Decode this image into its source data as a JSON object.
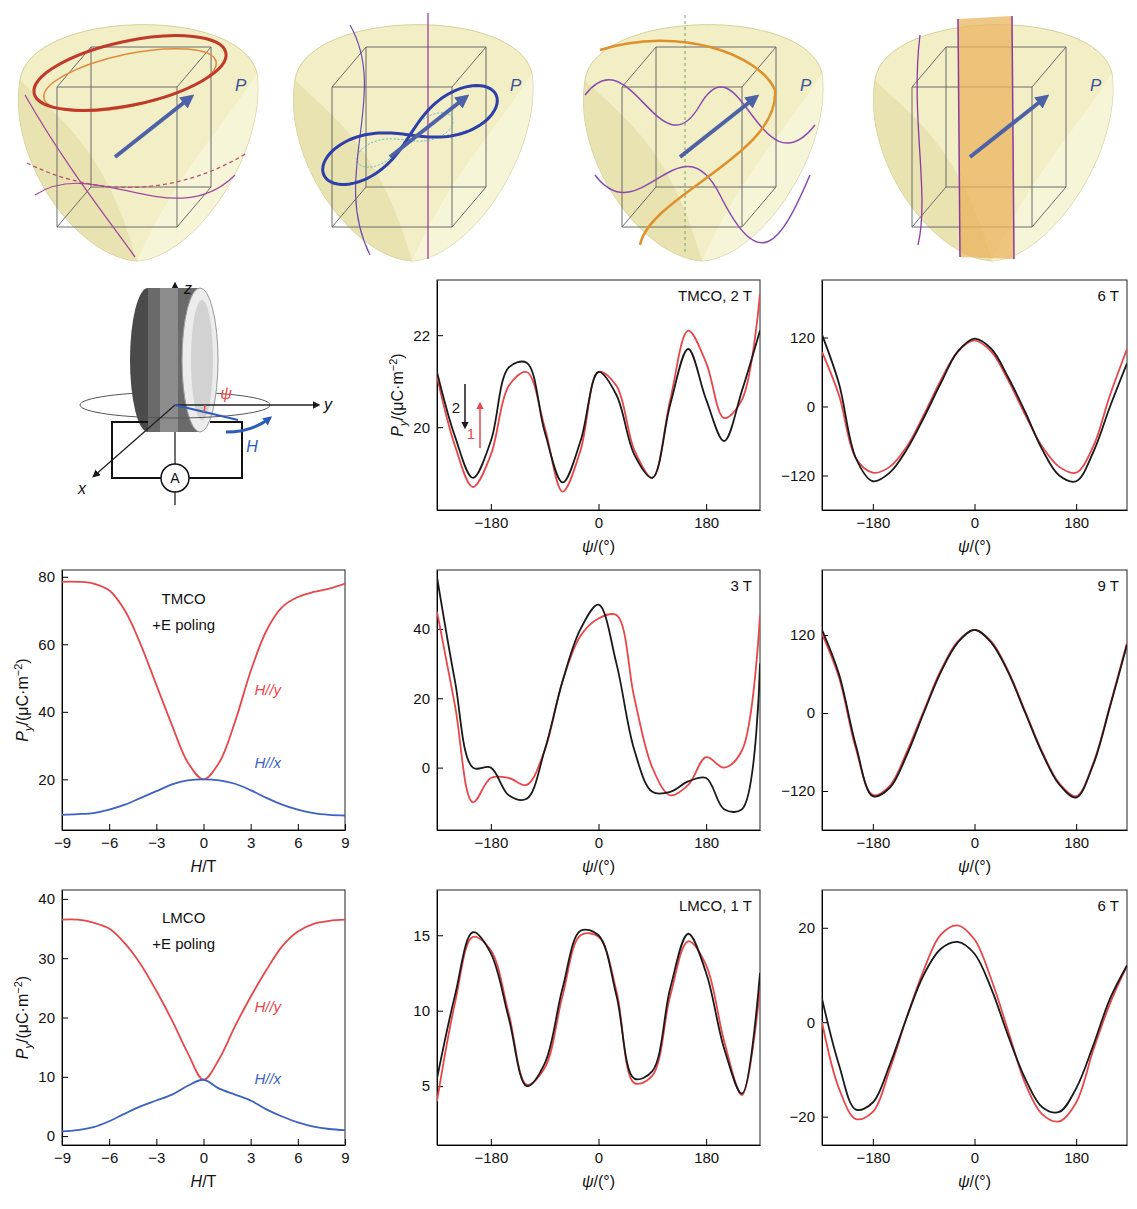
{
  "surfaces": [
    {
      "label": "P"
    },
    {
      "label": "P"
    },
    {
      "label": "P"
    },
    {
      "label": "P"
    }
  ],
  "schematic": {
    "z_axis": "z",
    "y_axis": "y",
    "x_axis": "x",
    "angle": "ψ",
    "field": "H",
    "meter": "A"
  },
  "chart_data": [
    {
      "type": "line",
      "title": "TMCO, 2 T",
      "x_label": [
        "ψ",
        "/(°)"
      ],
      "y_label": [
        "P",
        "y",
        "/(μC·m",
        "−2",
        ")"
      ],
      "x": [
        -270,
        -240,
        -210,
        -180,
        -150,
        -120,
        -90,
        -60,
        -30,
        0,
        30,
        60,
        90,
        120,
        150,
        180,
        210,
        240,
        270
      ],
      "xlim": [
        -270,
        270
      ],
      "xticks": [
        {
          "value": -180,
          "label": "−180"
        },
        0,
        180
      ],
      "ylim": [
        18.2,
        23.2
      ],
      "yticks": [
        20,
        22
      ],
      "series": [
        {
          "name": "1",
          "color": "#e8474a",
          "values": [
            21.1,
            19.6,
            18.7,
            19.4,
            20.9,
            21.2,
            20.0,
            18.6,
            19.5,
            21.2,
            20.9,
            19.5,
            18.9,
            20.6,
            22.1,
            21.4,
            20.2,
            20.6,
            22.9
          ]
        },
        {
          "name": "2",
          "color": "#1a1a1a",
          "values": [
            21.2,
            19.8,
            18.9,
            19.7,
            21.3,
            21.4,
            19.9,
            18.8,
            19.7,
            21.2,
            20.7,
            19.4,
            18.9,
            20.5,
            21.7,
            20.6,
            19.7,
            20.8,
            22.1
          ]
        }
      ]
    },
    {
      "type": "line",
      "title": "6 T",
      "x_label": [
        "ψ",
        "/(°)"
      ],
      "x": [
        -270,
        -240,
        -210,
        -180,
        -150,
        -120,
        -90,
        -60,
        -30,
        0,
        30,
        60,
        90,
        120,
        150,
        180,
        210,
        240,
        270
      ],
      "xlim": [
        -270,
        270
      ],
      "xticks": [
        {
          "value": -180,
          "label": "−180"
        },
        0,
        180
      ],
      "ylim": [
        -180,
        220
      ],
      "yticks": [
        {
          "value": -120,
          "label": "−120"
        },
        0,
        120
      ],
      "series": [
        {
          "color": "#e8474a",
          "values": [
            95,
            20,
            -90,
            -115,
            -105,
            -70,
            -15,
            45,
            95,
            115,
            95,
            45,
            -15,
            -70,
            -105,
            -115,
            -70,
            20,
            100
          ]
        },
        {
          "color": "#1a1a1a",
          "values": [
            125,
            40,
            -90,
            -130,
            -115,
            -75,
            -20,
            40,
            95,
            118,
            100,
            50,
            -10,
            -75,
            -120,
            -130,
            -80,
            0,
            75
          ]
        }
      ]
    },
    {
      "type": "line",
      "title": "TMCO",
      "subtitle": "+E poling",
      "x_label": [
        "H",
        "/T"
      ],
      "y_label": [
        "P",
        "y",
        "/(μC·m",
        "−2",
        ")"
      ],
      "x": [
        -9,
        -8,
        -7,
        -6,
        -5,
        -4,
        -3,
        -2,
        -1,
        0,
        1,
        2,
        3,
        4,
        5,
        6,
        7,
        8,
        9
      ],
      "xlim": [
        -9,
        9
      ],
      "xticks": [
        {
          "value": -9,
          "label": "−9"
        },
        {
          "value": -6,
          "label": "−6"
        },
        {
          "value": -3,
          "label": "−3"
        },
        0,
        3,
        6,
        9
      ],
      "ylim": [
        5,
        82
      ],
      "yticks": [
        20,
        40,
        60,
        80
      ],
      "series": [
        {
          "name": "H//y",
          "color": "#e8474a",
          "values": [
            78.5,
            78.5,
            78,
            76,
            70,
            60,
            48,
            36,
            25,
            20,
            25,
            37,
            52,
            64,
            71,
            74,
            75.5,
            76.5,
            78
          ]
        },
        {
          "name": "H//x",
          "color": "#3b62c4",
          "values": [
            9.5,
            9.7,
            10,
            11,
            12.5,
            14.5,
            16.5,
            18.5,
            19.7,
            20,
            19.7,
            18.7,
            16.8,
            14.5,
            12.5,
            11,
            10,
            9.5,
            9.3
          ]
        }
      ]
    },
    {
      "type": "line",
      "title": "3 T",
      "x_label": [
        "ψ",
        "/(°)"
      ],
      "x": [
        -270,
        -240,
        -210,
        -180,
        -150,
        -120,
        -90,
        -60,
        -30,
        0,
        30,
        60,
        90,
        120,
        150,
        180,
        210,
        240,
        270
      ],
      "xlim": [
        -270,
        270
      ],
      "xticks": [
        {
          "value": -180,
          "label": "−180"
        },
        0,
        180
      ],
      "ylim": [
        -18,
        57
      ],
      "yticks": [
        0,
        20,
        40
      ],
      "series": [
        {
          "color": "#e8474a",
          "values": [
            45,
            18,
            -10,
            -3,
            -3,
            -5,
            5,
            25,
            38,
            43,
            44,
            20,
            0,
            -8,
            -5,
            3,
            0,
            5,
            44
          ]
        },
        {
          "color": "#1a1a1a",
          "values": [
            55,
            25,
            0,
            0,
            -8,
            -9,
            5,
            25,
            40,
            47,
            30,
            5,
            -7,
            -7,
            -4,
            -3,
            -12,
            -12,
            30
          ]
        }
      ]
    },
    {
      "type": "line",
      "title": "9 T",
      "x_label": [
        "ψ",
        "/(°)"
      ],
      "x": [
        -270,
        -240,
        -210,
        -180,
        -150,
        -120,
        -90,
        -60,
        -30,
        0,
        30,
        60,
        90,
        120,
        150,
        180,
        210,
        240,
        270
      ],
      "xlim": [
        -270,
        270
      ],
      "xticks": [
        {
          "value": -180,
          "label": "−180"
        },
        0,
        180
      ],
      "ylim": [
        -180,
        220
      ],
      "yticks": [
        {
          "value": -120,
          "label": "−120"
        },
        0,
        120
      ],
      "series": [
        {
          "color": "#e8474a",
          "values": [
            122,
            55,
            -55,
            -126,
            -112,
            -60,
            3,
            65,
            110,
            128,
            110,
            64,
            2,
            -60,
            -108,
            -128,
            -78,
            12,
            108
          ]
        },
        {
          "color": "#1a1a1a",
          "values": [
            128,
            60,
            -50,
            -128,
            -115,
            -65,
            0,
            62,
            108,
            128,
            108,
            62,
            0,
            -62,
            -110,
            -130,
            -80,
            10,
            105
          ]
        }
      ]
    },
    {
      "type": "line",
      "title": "LMCO",
      "subtitle": "+E poling",
      "x_label": [
        "H",
        "/T"
      ],
      "y_label": [
        "P",
        "y",
        "/(μC·m",
        "−2",
        ")"
      ],
      "x": [
        -9,
        -8,
        -7,
        -6,
        -5,
        -4,
        -3,
        -2,
        -1,
        0,
        1,
        2,
        3,
        4,
        5,
        6,
        7,
        8,
        9
      ],
      "xlim": [
        -9,
        9
      ],
      "xticks": [
        {
          "value": -9,
          "label": "−9"
        },
        {
          "value": -6,
          "label": "−6"
        },
        {
          "value": -3,
          "label": "−3"
        },
        0,
        3,
        6,
        9
      ],
      "ylim": [
        -1.5,
        41.5
      ],
      "yticks": [
        0,
        10,
        20,
        30,
        40
      ],
      "series": [
        {
          "name": "H//y",
          "color": "#e8474a",
          "values": [
            36.5,
            36.5,
            36,
            35,
            32.5,
            29,
            24.5,
            19.5,
            14,
            9.5,
            13,
            18.5,
            23.5,
            28,
            32,
            34.5,
            35.8,
            36.3,
            36.5
          ]
        },
        {
          "name": "H//x",
          "color": "#3b62c4",
          "values": [
            0.8,
            1,
            1.5,
            2.5,
            3.8,
            5,
            6,
            7,
            8.5,
            9.5,
            8,
            7,
            6,
            4.5,
            3.3,
            2.3,
            1.6,
            1.2,
            1
          ]
        }
      ]
    },
    {
      "type": "line",
      "title": "LMCO, 1 T",
      "x_label": [
        "ψ",
        "/(°)"
      ],
      "x": [
        -270,
        -240,
        -210,
        -180,
        -150,
        -120,
        -90,
        -60,
        -30,
        0,
        30,
        60,
        90,
        120,
        150,
        180,
        210,
        240,
        270
      ],
      "xlim": [
        -270,
        270
      ],
      "xticks": [
        {
          "value": -180,
          "label": "−180"
        },
        0,
        180
      ],
      "ylim": [
        1.1,
        18
      ],
      "yticks": [
        5,
        10,
        15
      ],
      "series": [
        {
          "color": "#e8474a",
          "values": [
            4.0,
            10.5,
            14.9,
            14,
            9.8,
            5.1,
            6.2,
            11,
            15,
            14.9,
            11.3,
            5.2,
            5.7,
            11,
            14.6,
            13,
            8,
            4.4,
            11.5
          ]
        },
        {
          "color": "#1a1a1a",
          "values": [
            5.5,
            11,
            15.2,
            13.8,
            9.5,
            5.0,
            6.5,
            11.5,
            15.3,
            15.0,
            11,
            5.5,
            6,
            11.5,
            15.1,
            12.5,
            7.5,
            4.5,
            12.5
          ]
        }
      ]
    },
    {
      "type": "line",
      "title": "6 T",
      "x_label": [
        "ψ",
        "/(°)"
      ],
      "x": [
        -270,
        -240,
        -210,
        -180,
        -150,
        -120,
        -90,
        -60,
        -30,
        0,
        30,
        60,
        90,
        120,
        150,
        180,
        210,
        240,
        270
      ],
      "xlim": [
        -270,
        270
      ],
      "xticks": [
        {
          "value": -180,
          "label": "−180"
        },
        0,
        180
      ],
      "ylim": [
        -26,
        28
      ],
      "yticks": [
        {
          "value": -20,
          "label": "−20"
        },
        0,
        20
      ],
      "series": [
        {
          "color": "#e8474a",
          "values": [
            0,
            -14,
            -20.5,
            -19,
            -10,
            1,
            11,
            18.5,
            20.5,
            17.5,
            9,
            -2,
            -13,
            -19.5,
            -21,
            -17,
            -6,
            4,
            12
          ]
        },
        {
          "color": "#1a1a1a",
          "values": [
            5,
            -9,
            -18.5,
            -17,
            -9,
            1,
            10,
            15.5,
            17,
            14.5,
            7,
            -3,
            -12,
            -18,
            -19,
            -14,
            -5,
            5,
            12
          ]
        }
      ]
    }
  ]
}
